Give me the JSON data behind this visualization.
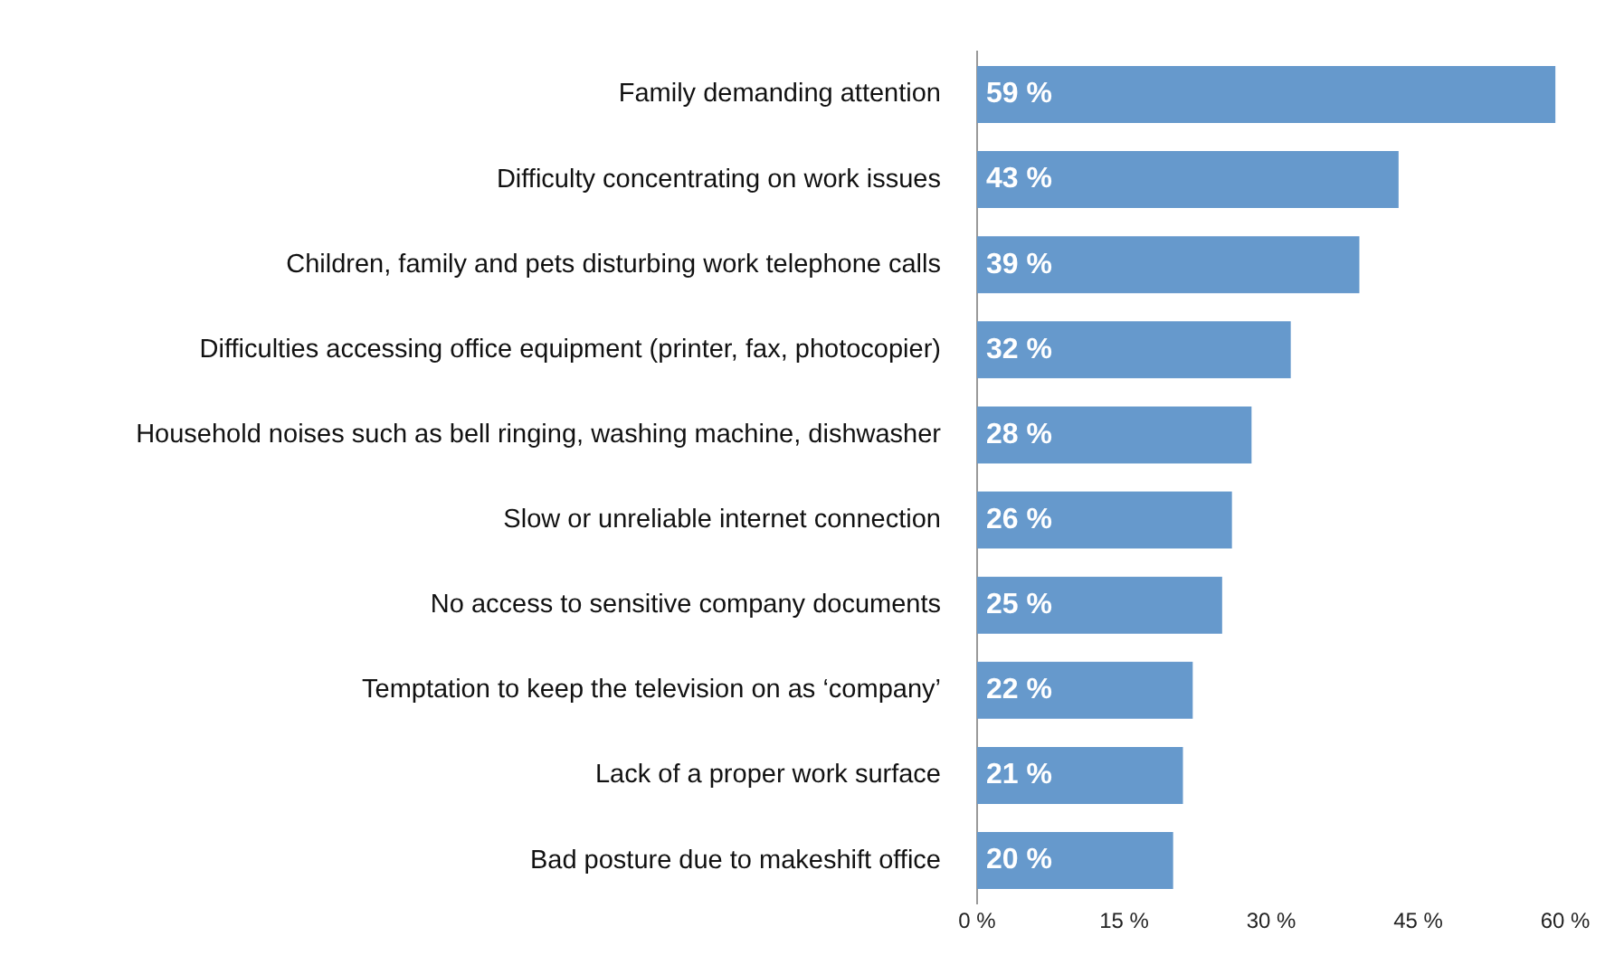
{
  "chart_data": {
    "type": "bar",
    "orientation": "horizontal",
    "categories": [
      "Family demanding attention",
      "Difficulty concentrating on work issues",
      "Children, family and pets disturbing work telephone calls",
      "Difficulties accessing office equipment (printer, fax, photocopier)",
      "Household noises such as bell ringing, washing machine, dishwasher",
      "Slow or unreliable internet connection",
      "No access to sensitive company documents",
      "Temptation to keep the television on as ‘company’",
      "Lack of a proper work surface",
      "Bad posture due to makeshift office"
    ],
    "values": [
      59,
      43,
      39,
      32,
      28,
      26,
      25,
      22,
      21,
      20
    ],
    "value_labels": [
      "59 %",
      "43 %",
      "39 %",
      "32 %",
      "28 %",
      "26 %",
      "25 %",
      "22 %",
      "21 %",
      "20 %"
    ],
    "color": "#6699cc",
    "xlim": [
      0,
      60
    ],
    "xticks": [
      {
        "value": 0,
        "label": "0 %"
      },
      {
        "value": 15,
        "label": "15 %"
      },
      {
        "value": 30,
        "label": "30 %"
      },
      {
        "value": 45,
        "label": "45 %"
      },
      {
        "value": 60,
        "label": "60 %"
      }
    ],
    "grid": false,
    "legend": false
  }
}
